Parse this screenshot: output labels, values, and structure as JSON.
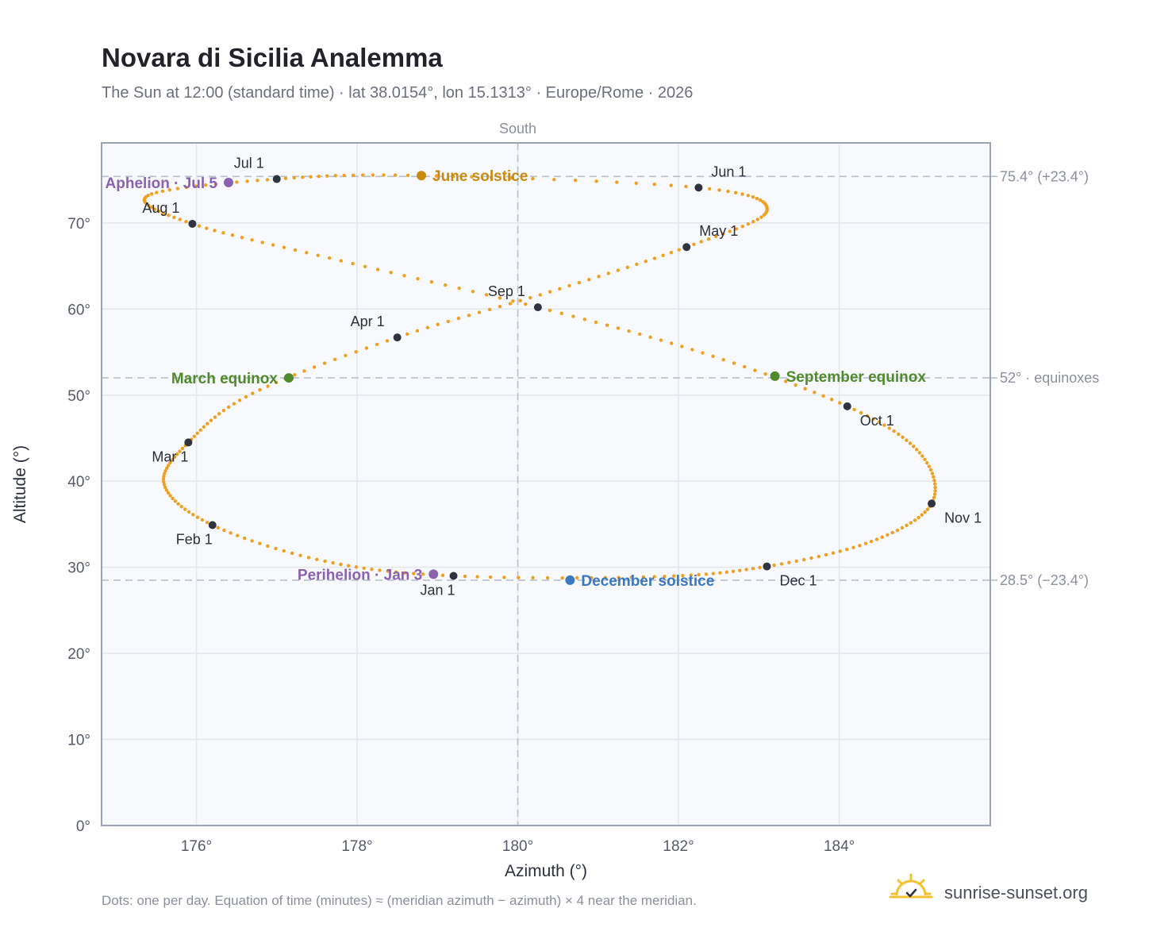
{
  "title": "Novara di Sicilia Analemma",
  "subtitle": "The Sun at 12:00 (standard time) · lat 38.0154°, lon 15.1313° · Europe/Rome · 2026",
  "footer_note": "Dots: one per day. Equation of time (minutes) ≈ (meridian azimuth − azimuth) × 4 near the meridian.",
  "brand": {
    "name": "sunrise-sunset.org",
    "icon": "sun-check-icon"
  },
  "colors": {
    "path": "#f0a020",
    "month_dot": "#2f3440",
    "june_solstice": "#c98a10",
    "december_solstice": "#3a78c0",
    "equinox": "#4f8a2c",
    "apsis": "#8a62b0",
    "plot_bg": "#f7f9fc",
    "grid": "#e3e7ee",
    "ref_line": "#b8c0cc",
    "frame": "#98a2b3"
  },
  "chart_data": {
    "type": "scatter",
    "xlabel": "Azimuth (°)",
    "ylabel": "Altitude (°)",
    "xlim": [
      174.82,
      185.88
    ],
    "ylim": [
      0,
      79.3
    ],
    "xticks": [
      176,
      178,
      180,
      182,
      184
    ],
    "xtick_labels": [
      "176°",
      "178°",
      "180°",
      "182°",
      "184°"
    ],
    "yticks": [
      0,
      10,
      20,
      30,
      40,
      50,
      60,
      70
    ],
    "ytick_labels": [
      "0°",
      "10°",
      "20°",
      "30°",
      "40°",
      "50°",
      "60°",
      "70°"
    ],
    "grid": true,
    "meridian": {
      "azimuth": 180,
      "label": "South"
    },
    "reference_lines": [
      {
        "altitude": 75.4,
        "label": "75.4° (+23.4°)"
      },
      {
        "altitude": 52,
        "label": "52° · equinoxes"
      },
      {
        "altitude": 28.5,
        "label": "28.5° (−23.4°)"
      }
    ],
    "daily_series": {
      "name": "",
      "note": "one point per day at 12:00 standard time",
      "anchors": [
        {
          "date": "Jan 1",
          "az": 179.2,
          "alt": 29.0
        },
        {
          "date": "Jan 15",
          "az": 177.6,
          "alt": 30.7
        },
        {
          "date": "Feb 1",
          "az": 176.2,
          "alt": 34.9
        },
        {
          "date": "Feb 15",
          "az": 175.6,
          "alt": 39.6
        },
        {
          "date": "Mar 1",
          "az": 175.9,
          "alt": 44.5
        },
        {
          "date": "Mar 15",
          "az": 176.7,
          "alt": 50.2
        },
        {
          "date": "Apr 1",
          "az": 178.5,
          "alt": 56.7
        },
        {
          "date": "Apr 15",
          "az": 180.4,
          "alt": 62.0
        },
        {
          "date": "May 1",
          "az": 182.1,
          "alt": 67.2
        },
        {
          "date": "May 15",
          "az": 183.1,
          "alt": 71.4
        },
        {
          "date": "Jun 1",
          "az": 182.25,
          "alt": 74.1
        },
        {
          "date": "Jun 21",
          "az": 178.8,
          "alt": 75.5
        },
        {
          "date": "Jul 1",
          "az": 177.0,
          "alt": 75.1
        },
        {
          "date": "Jul 15",
          "az": 175.4,
          "alt": 73.2
        },
        {
          "date": "Aug 1",
          "az": 175.95,
          "alt": 69.9
        },
        {
          "date": "Aug 15",
          "az": 177.8,
          "alt": 65.6
        },
        {
          "date": "Sep 1",
          "az": 180.25,
          "alt": 60.2
        },
        {
          "date": "Sep 15",
          "az": 182.3,
          "alt": 54.9
        },
        {
          "date": "Oct 1",
          "az": 184.1,
          "alt": 48.7
        },
        {
          "date": "Oct 15",
          "az": 185.0,
          "alt": 43.3
        },
        {
          "date": "Nov 1",
          "az": 185.15,
          "alt": 37.4
        },
        {
          "date": "Nov 15",
          "az": 184.4,
          "alt": 33.0
        },
        {
          "date": "Dec 1",
          "az": 183.1,
          "alt": 30.1
        },
        {
          "date": "Dec 15",
          "az": 181.7,
          "alt": 28.9
        },
        {
          "date": "Dec 31",
          "az": 179.3,
          "alt": 29.0
        }
      ]
    },
    "month_markers": [
      {
        "label": "Jan 1",
        "az": 179.2,
        "alt": 29.0,
        "anchor": "below"
      },
      {
        "label": "Feb 1",
        "az": 176.2,
        "alt": 34.9,
        "anchor": "below-left"
      },
      {
        "label": "Mar 1",
        "az": 175.9,
        "alt": 44.5,
        "anchor": "below-left"
      },
      {
        "label": "Apr 1",
        "az": 178.5,
        "alt": 56.7,
        "anchor": "above-left"
      },
      {
        "label": "May 1",
        "az": 182.1,
        "alt": 67.2,
        "anchor": "above-right"
      },
      {
        "label": "Jun 1",
        "az": 182.25,
        "alt": 74.1,
        "anchor": "above-right"
      },
      {
        "label": "Jul 1",
        "az": 177.0,
        "alt": 75.1,
        "anchor": "above-left"
      },
      {
        "label": "Aug 1",
        "az": 175.95,
        "alt": 69.9,
        "anchor": "above-left"
      },
      {
        "label": "Sep 1",
        "az": 180.25,
        "alt": 60.2,
        "anchor": "above-left"
      },
      {
        "label": "Oct 1",
        "az": 184.1,
        "alt": 48.7,
        "anchor": "below-right"
      },
      {
        "label": "Nov 1",
        "az": 185.15,
        "alt": 37.4,
        "anchor": "below-right"
      },
      {
        "label": "Dec 1",
        "az": 183.1,
        "alt": 30.1,
        "anchor": "below-right"
      }
    ],
    "events": [
      {
        "label": "June solstice",
        "az": 178.8,
        "alt": 75.5,
        "color_key": "june_solstice",
        "anchor": "right"
      },
      {
        "label": "December solstice",
        "az": 180.65,
        "alt": 28.5,
        "color_key": "december_solstice",
        "anchor": "right"
      },
      {
        "label": "March equinox",
        "az": 177.15,
        "alt": 52.0,
        "color_key": "equinox",
        "anchor": "left"
      },
      {
        "label": "September equinox",
        "az": 183.2,
        "alt": 52.2,
        "color_key": "equinox",
        "anchor": "right"
      },
      {
        "label": "Aphelion · Jul 5",
        "az": 176.4,
        "alt": 74.7,
        "color_key": "apsis",
        "anchor": "left"
      },
      {
        "label": "Perihelion · Jan 3",
        "az": 178.95,
        "alt": 29.2,
        "color_key": "apsis",
        "anchor": "left"
      }
    ]
  }
}
